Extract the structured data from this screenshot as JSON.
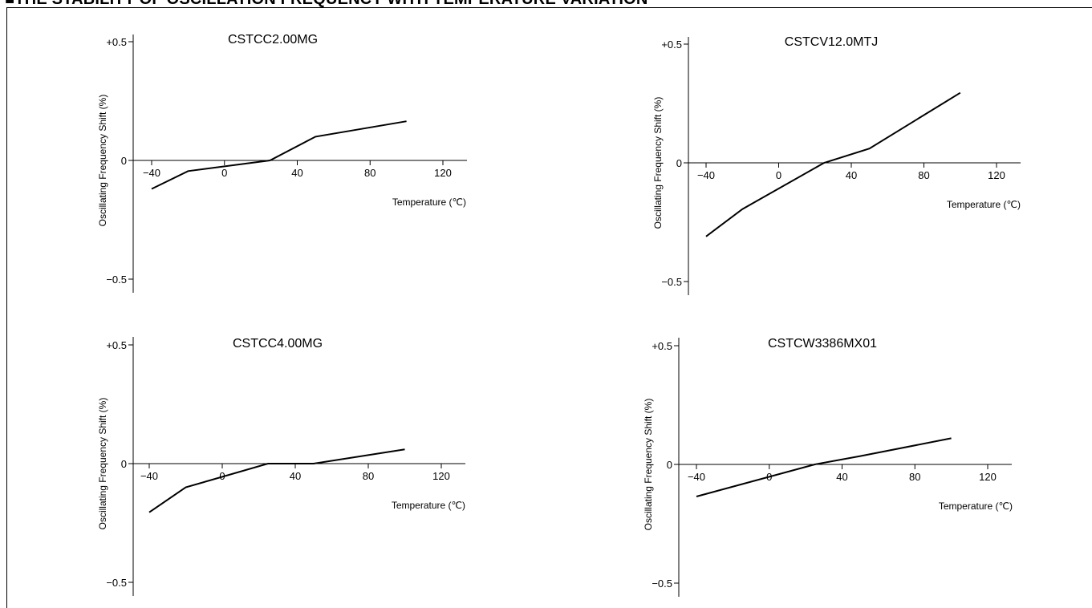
{
  "header": {
    "title": "■THE STABILITY OF OSCILLATION FREQUENCY WITH TEMPERATURE VARIATION"
  },
  "chart_data": [
    {
      "type": "line",
      "title": "CSTCC2.00MG",
      "xlabel": "Temperature (℃)",
      "ylabel": "Oscillating Frequency Shift (%)",
      "xlim": [
        -40,
        120
      ],
      "ylim": [
        -0.5,
        0.5
      ],
      "xticks": [
        -40,
        0,
        40,
        80,
        120
      ],
      "xtick_labels": [
        "−40",
        "0",
        "40",
        "80",
        "120"
      ],
      "yticks": [
        0.5,
        0,
        -0.5
      ],
      "ytick_labels": [
        "+0.5",
        "0",
        "−0.5"
      ],
      "grid": false,
      "x": [
        -40,
        -20,
        25,
        50,
        100
      ],
      "y": [
        -0.12,
        -0.045,
        0,
        0.1,
        0.165
      ]
    },
    {
      "type": "line",
      "title": "CSTCV12.0MTJ",
      "xlabel": "Temperature (℃)",
      "ylabel": "Oscillating Frequency Shift (%)",
      "xlim": [
        -40,
        120
      ],
      "ylim": [
        -0.5,
        0.5
      ],
      "xticks": [
        -40,
        0,
        40,
        80,
        120
      ],
      "xtick_labels": [
        "−40",
        "0",
        "40",
        "80",
        "120"
      ],
      "yticks": [
        0.5,
        0,
        -0.5
      ],
      "ytick_labels": [
        "+0.5",
        "0",
        "−0.5"
      ],
      "grid": false,
      "x": [
        -40,
        -20,
        25,
        50,
        100
      ],
      "y": [
        -0.31,
        -0.195,
        0,
        0.06,
        0.295
      ]
    },
    {
      "type": "line",
      "title": "CSTCC4.00MG",
      "xlabel": "Temperature (℃)",
      "ylabel": "Oscillating Frequency Shift (%)",
      "xlim": [
        -40,
        120
      ],
      "ylim": [
        -0.5,
        0.5
      ],
      "xticks": [
        -40,
        0,
        40,
        80,
        120
      ],
      "xtick_labels": [
        "−40",
        "0",
        "40",
        "80",
        "120"
      ],
      "yticks": [
        0.5,
        0,
        -0.5
      ],
      "ytick_labels": [
        "+0.5",
        "0",
        "−0.5"
      ],
      "grid": false,
      "x": [
        -40,
        -20,
        25,
        50,
        100
      ],
      "y": [
        -0.205,
        -0.1,
        0,
        0,
        0.06
      ]
    },
    {
      "type": "line",
      "title": "CSTCW3386MX01",
      "xlabel": "Temperature (℃)",
      "ylabel": "Oscillating Frequency Shift (%)",
      "xlim": [
        -40,
        120
      ],
      "ylim": [
        -0.5,
        0.5
      ],
      "xticks": [
        -40,
        0,
        40,
        80,
        120
      ],
      "xtick_labels": [
        "−40",
        "0",
        "40",
        "80",
        "120"
      ],
      "yticks": [
        0.5,
        0,
        -0.5
      ],
      "ytick_labels": [
        "+0.5",
        "0",
        "−0.5"
      ],
      "grid": false,
      "x": [
        -40,
        25,
        50,
        100
      ],
      "y": [
        -0.135,
        0,
        0.035,
        0.11
      ]
    }
  ]
}
